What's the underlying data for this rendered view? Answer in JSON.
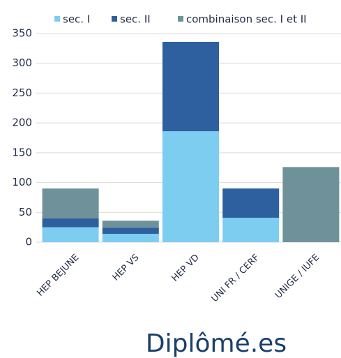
{
  "chart_data": {
    "type": "stacked_bar",
    "title": "Diplômé.es",
    "categories": [
      "HEP BEJUNE",
      "HEP VS",
      "HEP VD",
      "UNI FR / CERF",
      "UNIGE / IUFE"
    ],
    "series": [
      {
        "name": "sec. I",
        "color": "#7dcdf1",
        "values": [
          25,
          14,
          186,
          41,
          null
        ]
      },
      {
        "name": "sec. II",
        "color": "#2e5f9e",
        "values": [
          15,
          10,
          150,
          49,
          null
        ]
      },
      {
        "name": "combinaison sec. I et II",
        "color": "#6f929a",
        "values": [
          50,
          12,
          null,
          null,
          126
        ]
      }
    ],
    "ylim": [
      0,
      350
    ],
    "yticks": [
      0,
      50,
      100,
      150,
      200,
      250,
      300,
      350
    ],
    "grid": true,
    "legend": "top"
  }
}
